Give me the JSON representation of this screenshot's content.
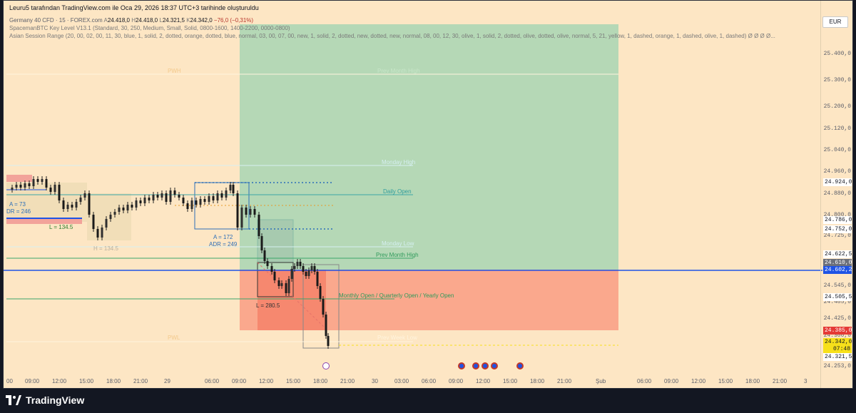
{
  "header": {
    "credit": "Leuru5 tarafından TradingView.com ile Oca 29, 2026 18:37 UTC+3 tarihinde oluşturuldu"
  },
  "legend": {
    "symbol": "Germany 40 CFD · 15 · FOREX.com",
    "open": "24.418,0",
    "high": "24.418,0",
    "low": "24.321,5",
    "close": "24.342,0",
    "change": "−76,0 (−0,31%)",
    "indicator1": "SpacemanBTC Key Level V13.1 (Standard, 30, 250, Medium, Small, Solid, 0800-1600, 1400-2200, 0000-0800)",
    "indicator2": "Asian Session Range (20, 00, 02, 00, 11, 30, blue, 1, solid, 2, dotted, orange, dotted, blue, normal, 03, 00, 07, 00, new, 1, solid, 2, dotted, new, dotted, new, normal, 08, 00, 12, 30, olive, 1, solid, 2, dotted, olive, dotted, olive, normal, 5, 21, yellow, 1, dashed, orange, 1, dashed, olive, 1, dashed) Ø Ø Ø Ø..."
  },
  "price_axis": {
    "currency": "EUR",
    "labels": [
      "25.400,0",
      "25.300,0",
      "25.200,0",
      "25.120,0",
      "25.040,0",
      "24.960,0",
      "24.880,0",
      "24.800,0",
      "24.725,0",
      "24.545,0",
      "24.485,0",
      "24.425,0",
      "24.300,0",
      "24.253,0"
    ],
    "tags": {
      "t1": "24.924,0",
      "t2": "24.786,0",
      "t3": "24.752,0",
      "t4": "24.622,5",
      "t5": "24.610,0",
      "t6": "24.602,2",
      "t7": "24.505,5",
      "t8": "24.385,0",
      "t9": "24.342,0",
      "t9b": "07:48",
      "t10": "24.321,5"
    }
  },
  "time_axis": {
    "labels": [
      "00",
      "09:00",
      "12:00",
      "15:00",
      "18:00",
      "21:00",
      "29",
      "06:00",
      "09:00",
      "12:00",
      "15:00",
      "18:00",
      "21:00",
      "30",
      "03:00",
      "06:00",
      "09:00",
      "12:00",
      "15:00",
      "18:00",
      "21:00",
      "Şub",
      "06:00",
      "09:00",
      "12:00",
      "15:00",
      "18:00",
      "21:00",
      "3"
    ]
  },
  "annotations": {
    "pwh": "PWH",
    "prev_month_high_top": "Prev Month High",
    "monday_high": "Monday High",
    "daily_open": "Daily Open",
    "monday_low": "Monday Low",
    "prev_month_high": "Prev Month High",
    "monthly_open": "Monthly Open / Quarterly Open / Yearly Open",
    "pwl": "PWL",
    "prev_week_low": "Prev Week Low",
    "a1": "A = 73",
    "adr1": "DR = 246",
    "l1": "L = 134.5",
    "h1": "H = 134.5",
    "a2": "A = 172",
    "adr2": "ADR = 249",
    "l2": "L = 280.5"
  },
  "colors": {
    "background": "#fde6c4",
    "green_zone": "#a8d5b4",
    "red_zone": "#f99c84",
    "blue_line": "#1e53e5",
    "close_tag": "#f7e01a",
    "sell_tag": "#e53935"
  },
  "footer": {
    "brand": "TradingView"
  }
}
